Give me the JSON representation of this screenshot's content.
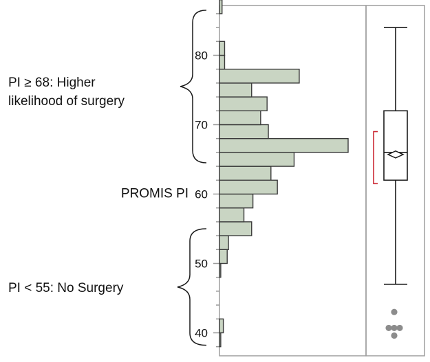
{
  "chart_data": {
    "type": "bar",
    "orientation": "horizontal-histogram",
    "axis": {
      "label": "PROMIS PI",
      "range": [
        38,
        89
      ],
      "ticks": [
        40,
        50,
        60,
        70,
        80
      ],
      "minor_step": 2
    },
    "bin_width": 2,
    "bins": [
      {
        "start": 38,
        "count": 1
      },
      {
        "start": 40,
        "count": 3
      },
      {
        "start": 42,
        "count": 0
      },
      {
        "start": 44,
        "count": 0
      },
      {
        "start": 46,
        "count": 0
      },
      {
        "start": 48,
        "count": 1
      },
      {
        "start": 50,
        "count": 6
      },
      {
        "start": 52,
        "count": 7
      },
      {
        "start": 54,
        "count": 25
      },
      {
        "start": 56,
        "count": 19
      },
      {
        "start": 58,
        "count": 26
      },
      {
        "start": 60,
        "count": 45
      },
      {
        "start": 62,
        "count": 40
      },
      {
        "start": 64,
        "count": 58
      },
      {
        "start": 66,
        "count": 100
      },
      {
        "start": 68,
        "count": 38
      },
      {
        "start": 70,
        "count": 32
      },
      {
        "start": 72,
        "count": 37
      },
      {
        "start": 74,
        "count": 25
      },
      {
        "start": 76,
        "count": 62
      },
      {
        "start": 78,
        "count": 4
      },
      {
        "start": 80,
        "count": 4
      },
      {
        "start": 82,
        "count": 0
      },
      {
        "start": 84,
        "count": 0
      },
      {
        "start": 86,
        "count": 2
      }
    ],
    "boxplot": {
      "whisker_low": 47,
      "q1": 62,
      "median": 66,
      "mean": 65.7,
      "mean_diamond_half_height": 0.5,
      "q3": 72,
      "whisker_high": 84,
      "shortest_half": [
        61.5,
        69
      ],
      "outliers": [
        {
          "value": 43,
          "offset": 0
        },
        {
          "value": 40.7,
          "offset": -8
        },
        {
          "value": 40.7,
          "offset": 0
        },
        {
          "value": 40.7,
          "offset": 8
        },
        {
          "value": 39.6,
          "offset": 0
        }
      ]
    },
    "annotations": [
      {
        "text_lines": [
          "PI ≥ 68: Higher",
          "likelihood of surgery"
        ],
        "range": [
          64.5,
          86.5
        ]
      },
      {
        "text_lines": [
          "PI < 55: No Surgery"
        ],
        "range": [
          38.2,
          55
        ]
      }
    ]
  },
  "colors": {
    "bar_fill": "#c9d5c3",
    "bar_stroke": "#3a3a3a",
    "frame": "#9e9e9e",
    "axis": "#9a9a9a",
    "text": "#111111",
    "box": "#1a1a1a",
    "shortest_half": "#cc2b36",
    "outlier": "#8c8c8c"
  }
}
